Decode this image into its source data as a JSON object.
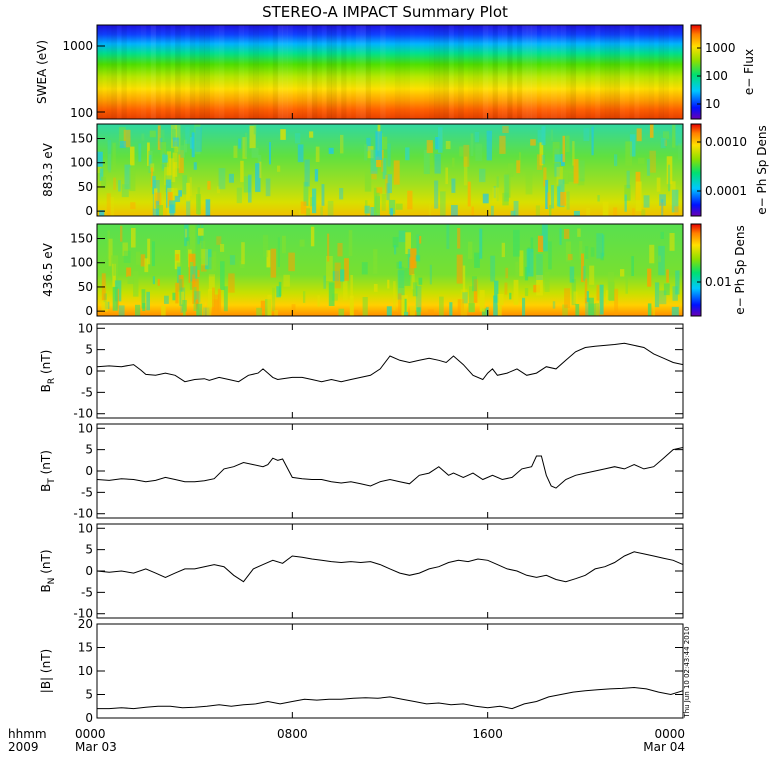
{
  "chart_data": {
    "type": "multi-panel",
    "title": "STEREO-A IMPACT Summary Plot",
    "x_axis": {
      "header_labels": [
        "hhmm",
        "2009"
      ],
      "ticks": [
        {
          "hours": 0,
          "label": "0000",
          "date": "Mar 03"
        },
        {
          "hours": 8,
          "label": "0800",
          "date": ""
        },
        {
          "hours": 16,
          "label": "1600",
          "date": ""
        },
        {
          "hours": 24,
          "label": "0000",
          "date": "Mar 04"
        }
      ],
      "range_hours": [
        0,
        24
      ]
    },
    "timestamp": "Thu Jun 10 02:43:44 2010",
    "spectrograms": [
      {
        "id": "swea",
        "ylabel": "SWEA (eV)",
        "yscale": "log",
        "yticks": [
          "1000",
          "100"
        ],
        "ylim": [
          90,
          2000
        ],
        "colorbar_label": "e− Flux",
        "colorbar_ticks": [
          "1000",
          "100",
          "10"
        ],
        "colorbar_range": [
          3,
          5000
        ]
      },
      {
        "id": "pad883",
        "ylabel": "883.3 eV",
        "yscale": "linear",
        "yticks": [
          "150",
          "100",
          "50",
          "0"
        ],
        "ylim": [
          -10,
          180
        ],
        "colorbar_label": "e− Ph Sp Dens",
        "colorbar_ticks": [
          "0.0010",
          "0.0001"
        ],
        "colorbar_range": [
          2e-05,
          0.002
        ]
      },
      {
        "id": "pad436",
        "ylabel": "436.5 eV",
        "yscale": "linear",
        "yticks": [
          "150",
          "100",
          "50",
          "0"
        ],
        "ylim": [
          -10,
          180
        ],
        "colorbar_label": "e− Ph Sp Dens",
        "colorbar_ticks": [
          "0.01"
        ],
        "colorbar_range": [
          0.002,
          0.05
        ]
      }
    ],
    "line_panels": [
      {
        "id": "br",
        "ylabel": "B",
        "ysub": "R",
        "yunit": "(nT)",
        "ylim": [
          -11,
          11
        ],
        "yticks": [
          "10",
          "5",
          "0",
          "-5",
          "-10"
        ],
        "x_hours": [
          0,
          0.5,
          1,
          1.5,
          1.8,
          2,
          2.4,
          2.8,
          3.2,
          3.6,
          4,
          4.4,
          4.6,
          5,
          5.4,
          5.8,
          6.2,
          6.6,
          6.8,
          7,
          7.2,
          7.4,
          7.6,
          8,
          8.4,
          8.8,
          9.2,
          9.6,
          10,
          10.4,
          10.8,
          11.2,
          11.6,
          12,
          12.4,
          12.8,
          13.2,
          13.6,
          14,
          14.3,
          14.6,
          15,
          15.4,
          15.8,
          16,
          16.2,
          16.4,
          16.8,
          17.2,
          17.6,
          18,
          18.4,
          18.8,
          19.2,
          19.6,
          20,
          20.4,
          20.8,
          21.2,
          21.6,
          22,
          22.4,
          22.8,
          23.2,
          23.6,
          24
        ],
        "values": [
          1,
          1.2,
          1,
          1.5,
          0.2,
          -0.8,
          -1,
          -0.5,
          -1,
          -2.5,
          -2,
          -1.8,
          -2.2,
          -1.5,
          -2,
          -2.5,
          -1,
          -0.5,
          0.5,
          -0.5,
          -1.5,
          -2,
          -1.8,
          -1.5,
          -1.5,
          -2,
          -2.5,
          -2,
          -2.5,
          -2,
          -1.5,
          -1,
          0.5,
          3.5,
          2.5,
          2,
          2.5,
          3,
          2.5,
          2,
          3.5,
          1.5,
          -1,
          -2,
          -0.5,
          0.5,
          -1,
          -0.5,
          0.5,
          -1,
          -0.5,
          1,
          0.5,
          2.5,
          4.5,
          5.5,
          5.8,
          6,
          6.2,
          6.5,
          6,
          5.5,
          4,
          3,
          2,
          1.5
        ]
      },
      {
        "id": "bt",
        "ylabel": "B",
        "ysub": "T",
        "yunit": "(nT)",
        "ylim": [
          -11,
          11
        ],
        "yticks": [
          "10",
          "5",
          "0",
          "-5",
          "-10"
        ],
        "x_hours": [
          0,
          0.5,
          1,
          1.5,
          2,
          2.4,
          2.8,
          3.2,
          3.6,
          4,
          4.4,
          4.8,
          5.2,
          5.6,
          6,
          6.4,
          6.8,
          7,
          7.2,
          7.4,
          7.6,
          8,
          8.4,
          8.8,
          9.2,
          9.6,
          10,
          10.4,
          10.8,
          11.2,
          11.6,
          12,
          12.4,
          12.8,
          13.2,
          13.6,
          14,
          14.4,
          14.6,
          15,
          15.4,
          15.8,
          16.2,
          16.6,
          17,
          17.4,
          17.8,
          18,
          18.2,
          18.4,
          18.6,
          18.8,
          19,
          19.2,
          19.6,
          20,
          20.4,
          20.8,
          21.2,
          21.6,
          22,
          22.4,
          22.8,
          23.2,
          23.6,
          24
        ],
        "values": [
          -2,
          -2.2,
          -1.8,
          -2,
          -2.5,
          -2.2,
          -1.5,
          -2,
          -2.5,
          -2.5,
          -2.3,
          -1.8,
          0.5,
          1,
          2,
          1.5,
          1,
          1.5,
          3,
          2.5,
          2.8,
          -1.5,
          -1.8,
          -2,
          -2,
          -2.5,
          -2.8,
          -2.5,
          -3,
          -3.5,
          -2.5,
          -2,
          -2.5,
          -3,
          -1,
          -0.5,
          1,
          -1,
          -0.5,
          -1.5,
          -0.5,
          -2,
          -1,
          -2,
          -1.5,
          0.5,
          1,
          3.5,
          3.5,
          -1,
          -3.5,
          -4,
          -3,
          -2,
          -1,
          -0.5,
          0,
          0.5,
          1,
          0.5,
          1.5,
          0.5,
          1,
          3,
          5,
          5.5
        ]
      },
      {
        "id": "bn",
        "ylabel": "B",
        "ysub": "N",
        "yunit": "(nT)",
        "ylim": [
          -11,
          11
        ],
        "yticks": [
          "10",
          "5",
          "0",
          "-5",
          "-10"
        ],
        "x_hours": [
          0,
          0.5,
          1,
          1.5,
          2,
          2.4,
          2.8,
          3.2,
          3.6,
          4,
          4.4,
          4.8,
          5.2,
          5.6,
          6,
          6.4,
          6.8,
          7.2,
          7.6,
          8,
          8.4,
          8.8,
          9.2,
          9.6,
          10,
          10.4,
          10.8,
          11.2,
          11.6,
          12,
          12.4,
          12.8,
          13.2,
          13.6,
          14,
          14.4,
          14.8,
          15.2,
          15.6,
          16,
          16.4,
          16.8,
          17.2,
          17.6,
          18,
          18.4,
          18.8,
          19.2,
          19.6,
          20,
          20.4,
          20.8,
          21.2,
          21.6,
          22,
          22.4,
          22.8,
          23.2,
          23.6,
          24
        ],
        "values": [
          0,
          -0.3,
          0,
          -0.5,
          0.5,
          -0.5,
          -1.5,
          -0.5,
          0.5,
          0.5,
          1,
          1.5,
          1,
          -1,
          -2.5,
          0.5,
          1.5,
          2.5,
          1.8,
          3.5,
          3.2,
          2.8,
          2.5,
          2.2,
          2,
          2.2,
          2,
          2.2,
          1.5,
          0.5,
          -0.5,
          -1,
          -0.5,
          0.5,
          1,
          2,
          2.5,
          2.2,
          2.8,
          2.5,
          1.5,
          0.5,
          0,
          -1,
          -1.5,
          -1,
          -2,
          -2.5,
          -1.8,
          -1,
          0.5,
          1,
          2,
          3.5,
          4.5,
          4,
          3.5,
          3,
          2.5,
          1.5
        ]
      },
      {
        "id": "bmag",
        "ylabel": "|B|",
        "ysub": "",
        "yunit": "(nT)",
        "ylim": [
          0,
          20
        ],
        "yticks": [
          "20",
          "15",
          "10",
          "5",
          "0"
        ],
        "x_hours": [
          0,
          0.5,
          1,
          1.5,
          2,
          2.5,
          3,
          3.5,
          4,
          4.5,
          5,
          5.5,
          6,
          6.5,
          7,
          7.5,
          8,
          8.5,
          9,
          9.5,
          10,
          10.5,
          11,
          11.5,
          12,
          12.5,
          13,
          13.5,
          14,
          14.5,
          15,
          15.5,
          16,
          16.5,
          17,
          17.5,
          18,
          18.5,
          19,
          19.5,
          20,
          20.5,
          21,
          21.5,
          22,
          22.5,
          23,
          23.5,
          24
        ],
        "values": [
          2,
          2,
          2.2,
          2,
          2.3,
          2.5,
          2.5,
          2.2,
          2.3,
          2.5,
          2.8,
          2.5,
          2.8,
          3,
          3.5,
          3,
          3.5,
          4,
          3.8,
          4,
          4,
          4.2,
          4.3,
          4.2,
          4.5,
          4,
          3.5,
          3,
          3.2,
          2.8,
          3,
          2.5,
          2.2,
          2.5,
          2,
          3,
          3.5,
          4.5,
          5,
          5.5,
          5.8,
          6,
          6.2,
          6.3,
          6.5,
          6.2,
          5.5,
          5,
          5.8
        ]
      }
    ]
  }
}
